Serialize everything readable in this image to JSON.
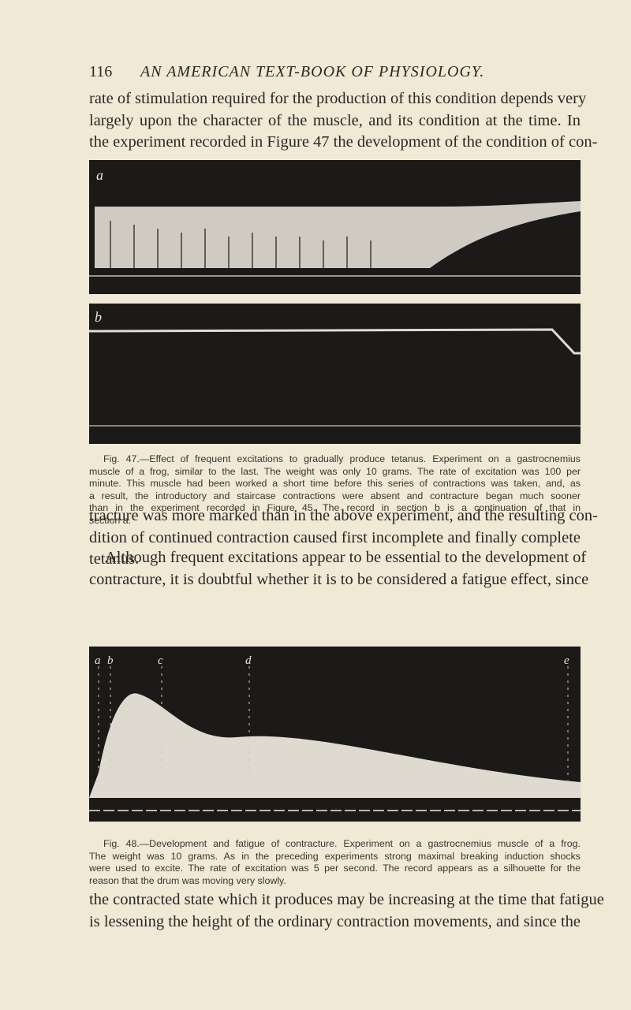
{
  "header": {
    "page_number": "116",
    "running_title": "AN AMERICAN TEXT-BOOK OF PHYSIOLOGY."
  },
  "paragraphs": [
    [
      "rate of stimulation required for the production of this condition depends very",
      "largely upon the character of the muscle, and its condition at the time. In",
      "the experiment recorded in Figure 47 the development of the condition of con-"
    ],
    [
      "tracture was more marked than in the above experiment, and the resulting con-",
      "dition of continued contraction caused first incomplete and finally complete",
      "tetanus."
    ],
    [
      "Although frequent excitations appear to be essential to the development of",
      "contracture, it is doubtful whether it is to be considered a fatigue effect, since"
    ],
    [
      "the contracted state which it produces may be increasing at the time that fatigue",
      "is lessening the height of the ordinary contraction movements, and since the"
    ]
  ],
  "figure_47": {
    "section_labels": [
      "a",
      "b"
    ],
    "caption": [
      "Fig. 47.—Effect of frequent excitations to gradually produce tetanus. Experiment on a gastrocnemius",
      "muscle of a frog, similar to the last. The weight was only 10 grams. The rate of excitation was 100 per",
      "minute. This muscle had been worked a short time before this series of contractions was taken, and, as",
      "a result, the introductory and staircase contractions were absent and contracture began much sooner",
      "than in the experiment recorded in Figure 45. The record in section b is a continuation of that in",
      "section a."
    ]
  },
  "figure_48": {
    "labels": [
      "a",
      "b",
      "c",
      "d",
      "e"
    ],
    "caption": [
      "Fig. 48.—Development and fatigue of contracture. Experiment on a gastrocnemius muscle of a frog.",
      "The weight was 10 grams. As in the preceding experiments strong maximal breaking induction shocks",
      "were used to excite. The rate of excitation was 5 per second. The record appears as a silhouette for the",
      "reason that the drum was moving very slowly."
    ]
  }
}
